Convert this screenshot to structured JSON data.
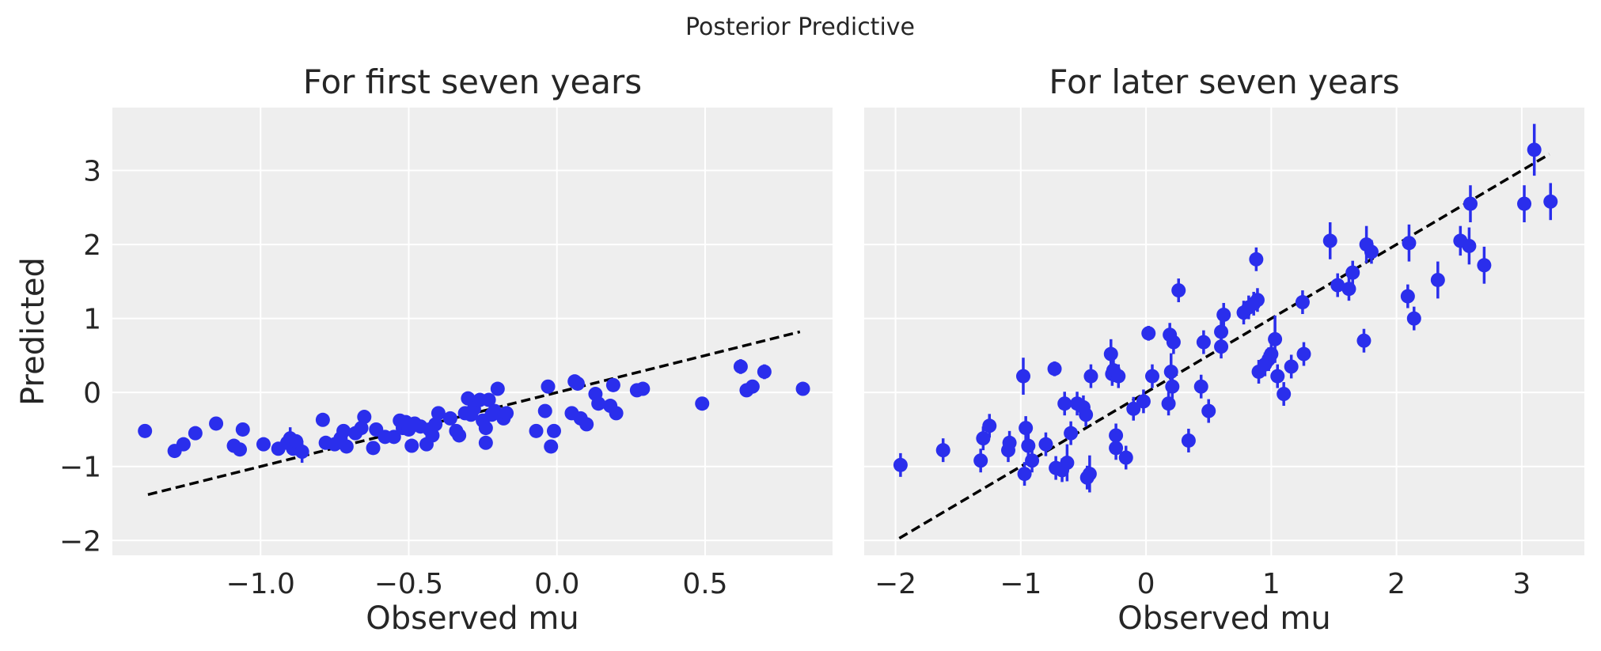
{
  "figure": {
    "suptitle": "Posterior Predictive"
  },
  "style": {
    "axes_bg": "#eeeeee",
    "grid_color": "#ffffff",
    "point_color": "#2a2eec",
    "ref_line_color": "#000000",
    "text_color": "#262626"
  },
  "chart_data": [
    {
      "type": "scatter",
      "title": "For first seven years",
      "xlabel": "Observed mu",
      "ylabel": "Predicted",
      "xlim": [
        -1.5,
        0.93
      ],
      "ylim": [
        -2.2,
        3.85
      ],
      "xticks": [
        -1.0,
        -0.5,
        0.0,
        0.5
      ],
      "xtick_labels": [
        "−1.0",
        "−0.5",
        "0.0",
        "0.5"
      ],
      "yticks": [
        -2,
        -1,
        0,
        1,
        2,
        3
      ],
      "ytick_labels": [
        "−2",
        "−1",
        "0",
        "1",
        "2",
        "3"
      ],
      "grid": true,
      "reference_line": {
        "style": "dashed",
        "x": [
          -1.38,
          0.82
        ],
        "y": [
          -1.38,
          0.82
        ]
      },
      "points": [
        {
          "x": -1.39,
          "y": -0.52,
          "err": 0.05
        },
        {
          "x": -1.29,
          "y": -0.79,
          "err": 0.05
        },
        {
          "x": -1.26,
          "y": -0.7,
          "err": 0.06
        },
        {
          "x": -1.22,
          "y": -0.55,
          "err": 0.05
        },
        {
          "x": -1.15,
          "y": -0.42,
          "err": 0.05
        },
        {
          "x": -1.09,
          "y": -0.72,
          "err": 0.06
        },
        {
          "x": -1.07,
          "y": -0.77,
          "err": 0.05
        },
        {
          "x": -1.06,
          "y": -0.5,
          "err": 0.05
        },
        {
          "x": -0.99,
          "y": -0.7,
          "err": 0.05
        },
        {
          "x": -0.94,
          "y": -0.76,
          "err": 0.06
        },
        {
          "x": -0.91,
          "y": -0.68,
          "err": 0.06
        },
        {
          "x": -0.9,
          "y": -0.62,
          "err": 0.15
        },
        {
          "x": -0.89,
          "y": -0.76,
          "err": 0.06
        },
        {
          "x": -0.88,
          "y": -0.66,
          "err": 0.08
        },
        {
          "x": -0.86,
          "y": -0.8,
          "err": 0.15
        },
        {
          "x": -0.79,
          "y": -0.37,
          "err": 0.05
        },
        {
          "x": -0.78,
          "y": -0.68,
          "err": 0.06
        },
        {
          "x": -0.75,
          "y": -0.7,
          "err": 0.06
        },
        {
          "x": -0.73,
          "y": -0.62,
          "err": 0.06
        },
        {
          "x": -0.72,
          "y": -0.52,
          "err": 0.06
        },
        {
          "x": -0.71,
          "y": -0.73,
          "err": 0.06
        },
        {
          "x": -0.68,
          "y": -0.55,
          "err": 0.06
        },
        {
          "x": -0.66,
          "y": -0.48,
          "err": 0.06
        },
        {
          "x": -0.65,
          "y": -0.33,
          "err": 0.06
        },
        {
          "x": -0.62,
          "y": -0.75,
          "err": 0.07
        },
        {
          "x": -0.61,
          "y": -0.5,
          "err": 0.06
        },
        {
          "x": -0.58,
          "y": -0.6,
          "err": 0.06
        },
        {
          "x": -0.55,
          "y": -0.6,
          "err": 0.06
        },
        {
          "x": -0.53,
          "y": -0.38,
          "err": 0.06
        },
        {
          "x": -0.52,
          "y": -0.48,
          "err": 0.06
        },
        {
          "x": -0.51,
          "y": -0.4,
          "err": 0.06
        },
        {
          "x": -0.5,
          "y": -0.5,
          "err": 0.06
        },
        {
          "x": -0.49,
          "y": -0.72,
          "err": 0.07
        },
        {
          "x": -0.48,
          "y": -0.42,
          "err": 0.06
        },
        {
          "x": -0.46,
          "y": -0.46,
          "err": 0.06
        },
        {
          "x": -0.44,
          "y": -0.7,
          "err": 0.07
        },
        {
          "x": -0.43,
          "y": -0.5,
          "err": 0.06
        },
        {
          "x": -0.42,
          "y": -0.58,
          "err": 0.06
        },
        {
          "x": -0.41,
          "y": -0.43,
          "err": 0.06
        },
        {
          "x": -0.4,
          "y": -0.28,
          "err": 0.06
        },
        {
          "x": -0.36,
          "y": -0.35,
          "err": 0.06
        },
        {
          "x": -0.34,
          "y": -0.52,
          "err": 0.06
        },
        {
          "x": -0.33,
          "y": -0.58,
          "err": 0.07
        },
        {
          "x": -0.31,
          "y": -0.28,
          "err": 0.06
        },
        {
          "x": -0.3,
          "y": -0.08,
          "err": 0.07
        },
        {
          "x": -0.29,
          "y": -0.3,
          "err": 0.06
        },
        {
          "x": -0.28,
          "y": -0.22,
          "err": 0.06
        },
        {
          "x": -0.26,
          "y": -0.1,
          "err": 0.06
        },
        {
          "x": -0.25,
          "y": -0.38,
          "err": 0.06
        },
        {
          "x": -0.24,
          "y": -0.48,
          "err": 0.06
        },
        {
          "x": -0.24,
          "y": -0.68,
          "err": 0.07
        },
        {
          "x": -0.23,
          "y": -0.1,
          "err": 0.06
        },
        {
          "x": -0.22,
          "y": -0.3,
          "err": 0.06
        },
        {
          "x": -0.21,
          "y": -0.25,
          "err": 0.06
        },
        {
          "x": -0.2,
          "y": 0.05,
          "err": 0.07
        },
        {
          "x": -0.18,
          "y": -0.35,
          "err": 0.06
        },
        {
          "x": -0.17,
          "y": -0.28,
          "err": 0.06
        },
        {
          "x": -0.07,
          "y": -0.52,
          "err": 0.06
        },
        {
          "x": -0.04,
          "y": -0.25,
          "err": 0.06
        },
        {
          "x": -0.03,
          "y": 0.08,
          "err": 0.06
        },
        {
          "x": -0.02,
          "y": -0.73,
          "err": 0.06
        },
        {
          "x": -0.01,
          "y": -0.52,
          "err": 0.06
        },
        {
          "x": 0.05,
          "y": -0.28,
          "err": 0.06
        },
        {
          "x": 0.06,
          "y": 0.15,
          "err": 0.08
        },
        {
          "x": 0.07,
          "y": 0.12,
          "err": 0.06
        },
        {
          "x": 0.08,
          "y": -0.35,
          "err": 0.06
        },
        {
          "x": 0.1,
          "y": -0.43,
          "err": 0.06
        },
        {
          "x": 0.13,
          "y": -0.02,
          "err": 0.06
        },
        {
          "x": 0.14,
          "y": -0.15,
          "err": 0.06
        },
        {
          "x": 0.18,
          "y": -0.18,
          "err": 0.06
        },
        {
          "x": 0.19,
          "y": 0.1,
          "err": 0.08
        },
        {
          "x": 0.2,
          "y": -0.28,
          "err": 0.06
        },
        {
          "x": 0.27,
          "y": 0.03,
          "err": 0.06
        },
        {
          "x": 0.29,
          "y": 0.05,
          "err": 0.06
        },
        {
          "x": 0.49,
          "y": -0.15,
          "err": 0.06
        },
        {
          "x": 0.62,
          "y": 0.35,
          "err": 0.1
        },
        {
          "x": 0.64,
          "y": 0.03,
          "err": 0.06
        },
        {
          "x": 0.66,
          "y": 0.08,
          "err": 0.06
        },
        {
          "x": 0.7,
          "y": 0.28,
          "err": 0.1
        },
        {
          "x": 0.83,
          "y": 0.05,
          "err": 0.06
        }
      ]
    },
    {
      "type": "scatter",
      "title": "For later seven years",
      "xlabel": "Observed mu",
      "ylabel": "",
      "xlim": [
        -2.25,
        3.5
      ],
      "ylim": [
        -2.2,
        3.85
      ],
      "xticks": [
        -2,
        -1,
        0,
        1,
        2,
        3
      ],
      "xtick_labels": [
        "−2",
        "−1",
        "0",
        "1",
        "2",
        "3"
      ],
      "yticks": [
        -2,
        -1,
        0,
        1,
        2,
        3
      ],
      "grid": true,
      "reference_line": {
        "style": "dashed",
        "x": [
          -1.97,
          3.22
        ],
        "y": [
          -1.97,
          3.22
        ]
      },
      "points": [
        {
          "x": -1.96,
          "y": -0.98,
          "err": 0.16
        },
        {
          "x": -1.62,
          "y": -0.78,
          "err": 0.16
        },
        {
          "x": -1.32,
          "y": -0.92,
          "err": 0.16
        },
        {
          "x": -1.3,
          "y": -0.62,
          "err": 0.16
        },
        {
          "x": -1.25,
          "y": -0.45,
          "err": 0.16
        },
        {
          "x": -1.1,
          "y": -0.78,
          "err": 0.16
        },
        {
          "x": -1.09,
          "y": -0.68,
          "err": 0.16
        },
        {
          "x": -0.98,
          "y": 0.22,
          "err": 0.25
        },
        {
          "x": -0.97,
          "y": -1.1,
          "err": 0.16
        },
        {
          "x": -0.96,
          "y": -0.48,
          "err": 0.16
        },
        {
          "x": -0.94,
          "y": -0.72,
          "err": 0.16
        },
        {
          "x": -0.91,
          "y": -0.92,
          "err": 0.16
        },
        {
          "x": -0.8,
          "y": -0.7,
          "err": 0.16
        },
        {
          "x": -0.73,
          "y": 0.32,
          "err": 0.1
        },
        {
          "x": -0.72,
          "y": -1.02,
          "err": 0.16
        },
        {
          "x": -0.67,
          "y": -1.05,
          "err": 0.16
        },
        {
          "x": -0.65,
          "y": -0.15,
          "err": 0.16
        },
        {
          "x": -0.63,
          "y": -0.95,
          "err": 0.25
        },
        {
          "x": -0.6,
          "y": -0.55,
          "err": 0.16
        },
        {
          "x": -0.55,
          "y": -0.15,
          "err": 0.16
        },
        {
          "x": -0.5,
          "y": -0.2,
          "err": 0.16
        },
        {
          "x": -0.48,
          "y": -0.3,
          "err": 0.16
        },
        {
          "x": -0.47,
          "y": -1.15,
          "err": 0.16
        },
        {
          "x": -0.45,
          "y": -1.1,
          "err": 0.25
        },
        {
          "x": -0.44,
          "y": 0.22,
          "err": 0.16
        },
        {
          "x": -0.28,
          "y": 0.52,
          "err": 0.2
        },
        {
          "x": -0.27,
          "y": 0.25,
          "err": 0.16
        },
        {
          "x": -0.26,
          "y": 0.3,
          "err": 0.16
        },
        {
          "x": -0.24,
          "y": -0.58,
          "err": 0.16
        },
        {
          "x": -0.24,
          "y": -0.75,
          "err": 0.16
        },
        {
          "x": -0.22,
          "y": 0.22,
          "err": 0.16
        },
        {
          "x": -0.16,
          "y": -0.88,
          "err": 0.16
        },
        {
          "x": -0.1,
          "y": -0.22,
          "err": 0.16
        },
        {
          "x": -0.02,
          "y": -0.12,
          "err": 0.16
        },
        {
          "x": 0.02,
          "y": 0.8,
          "err": 0.1
        },
        {
          "x": 0.05,
          "y": 0.22,
          "err": 0.16
        },
        {
          "x": 0.18,
          "y": -0.15,
          "err": 0.16
        },
        {
          "x": 0.19,
          "y": 0.78,
          "err": 0.16
        },
        {
          "x": 0.2,
          "y": 0.28,
          "err": 0.25
        },
        {
          "x": 0.21,
          "y": 0.08,
          "err": 0.16
        },
        {
          "x": 0.22,
          "y": 0.68,
          "err": 0.16
        },
        {
          "x": 0.26,
          "y": 1.38,
          "err": 0.16
        },
        {
          "x": 0.34,
          "y": -0.65,
          "err": 0.16
        },
        {
          "x": 0.44,
          "y": 0.08,
          "err": 0.16
        },
        {
          "x": 0.46,
          "y": 0.68,
          "err": 0.16
        },
        {
          "x": 0.5,
          "y": -0.25,
          "err": 0.16
        },
        {
          "x": 0.6,
          "y": 0.62,
          "err": 0.16
        },
        {
          "x": 0.6,
          "y": 0.82,
          "err": 0.16
        },
        {
          "x": 0.62,
          "y": 1.05,
          "err": 0.16
        },
        {
          "x": 0.78,
          "y": 1.08,
          "err": 0.16
        },
        {
          "x": 0.82,
          "y": 1.15,
          "err": 0.16
        },
        {
          "x": 0.86,
          "y": 1.2,
          "err": 0.16
        },
        {
          "x": 0.88,
          "y": 1.8,
          "err": 0.16
        },
        {
          "x": 0.89,
          "y": 1.25,
          "err": 0.16
        },
        {
          "x": 0.9,
          "y": 0.28,
          "err": 0.16
        },
        {
          "x": 0.95,
          "y": 0.38,
          "err": 0.16
        },
        {
          "x": 0.98,
          "y": 0.45,
          "err": 0.16
        },
        {
          "x": 1.0,
          "y": 0.52,
          "err": 0.16
        },
        {
          "x": 1.03,
          "y": 0.72,
          "err": 0.32
        },
        {
          "x": 1.05,
          "y": 0.22,
          "err": 0.16
        },
        {
          "x": 1.1,
          "y": -0.02,
          "err": 0.16
        },
        {
          "x": 1.16,
          "y": 0.35,
          "err": 0.16
        },
        {
          "x": 1.25,
          "y": 1.22,
          "err": 0.16
        },
        {
          "x": 1.26,
          "y": 0.52,
          "err": 0.16
        },
        {
          "x": 1.47,
          "y": 2.05,
          "err": 0.25
        },
        {
          "x": 1.53,
          "y": 1.45,
          "err": 0.16
        },
        {
          "x": 1.62,
          "y": 1.4,
          "err": 0.16
        },
        {
          "x": 1.65,
          "y": 1.62,
          "err": 0.16
        },
        {
          "x": 1.74,
          "y": 0.7,
          "err": 0.16
        },
        {
          "x": 1.76,
          "y": 2.0,
          "err": 0.25
        },
        {
          "x": 1.8,
          "y": 1.9,
          "err": 0.16
        },
        {
          "x": 2.09,
          "y": 1.3,
          "err": 0.16
        },
        {
          "x": 2.1,
          "y": 2.02,
          "err": 0.25
        },
        {
          "x": 2.14,
          "y": 1.0,
          "err": 0.16
        },
        {
          "x": 2.33,
          "y": 1.52,
          "err": 0.25
        },
        {
          "x": 2.51,
          "y": 2.05,
          "err": 0.2
        },
        {
          "x": 2.58,
          "y": 1.98,
          "err": 0.25
        },
        {
          "x": 2.59,
          "y": 2.55,
          "err": 0.25
        },
        {
          "x": 2.7,
          "y": 1.72,
          "err": 0.25
        },
        {
          "x": 3.02,
          "y": 2.55,
          "err": 0.25
        },
        {
          "x": 3.1,
          "y": 3.28,
          "err": 0.35
        },
        {
          "x": 3.23,
          "y": 2.58,
          "err": 0.25
        }
      ]
    }
  ]
}
